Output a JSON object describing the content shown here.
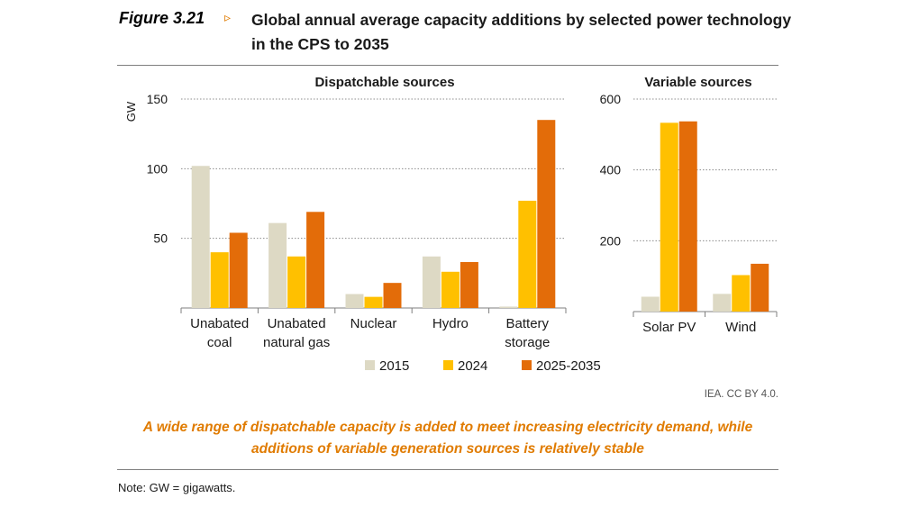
{
  "figure": {
    "label": "Figure 3.21",
    "arrow": "▹",
    "title": "Global annual average capacity additions by selected power technology in the CPS to 2035",
    "credit": "IEA. CC BY 4.0.",
    "caption": "A wide range of dispatchable capacity is added to meet increasing electricity demand, while additions of variable generation sources is relatively stable",
    "note": "Note: GW = gigawatts."
  },
  "colors": {
    "2015": "#ddd9c4",
    "2024": "#ffc000",
    "2025-2035": "#e36c09"
  },
  "chart_data": [
    {
      "type": "bar",
      "title": "Dispatchable sources",
      "ylabel": "GW",
      "xlabel": "",
      "ylim": [
        0,
        150
      ],
      "yticks": [
        50,
        100,
        150
      ],
      "grid": true,
      "categories": [
        [
          "Unabated",
          "coal"
        ],
        [
          "Unabated",
          "natural gas"
        ],
        [
          "Nuclear"
        ],
        [
          "Hydro"
        ],
        [
          "Battery",
          "storage"
        ]
      ],
      "series": [
        {
          "name": "2015",
          "values": [
            102,
            61,
            10,
            37,
            1
          ]
        },
        {
          "name": "2024",
          "values": [
            40,
            37,
            8,
            26,
            77
          ]
        },
        {
          "name": "2025-2035",
          "values": [
            54,
            69,
            18,
            33,
            135
          ]
        }
      ],
      "legend": "bottom"
    },
    {
      "type": "bar",
      "title": "Variable sources",
      "ylabel": "",
      "xlabel": "",
      "ylim": [
        0,
        600
      ],
      "yticks": [
        200,
        400,
        600
      ],
      "grid": true,
      "categories": [
        [
          "Solar PV"
        ],
        [
          "Wind"
        ]
      ],
      "series": [
        {
          "name": "2015",
          "values": [
            42,
            50
          ]
        },
        {
          "name": "2024",
          "values": [
            533,
            103
          ]
        },
        {
          "name": "2025-2035",
          "values": [
            537,
            135
          ]
        }
      ]
    }
  ]
}
